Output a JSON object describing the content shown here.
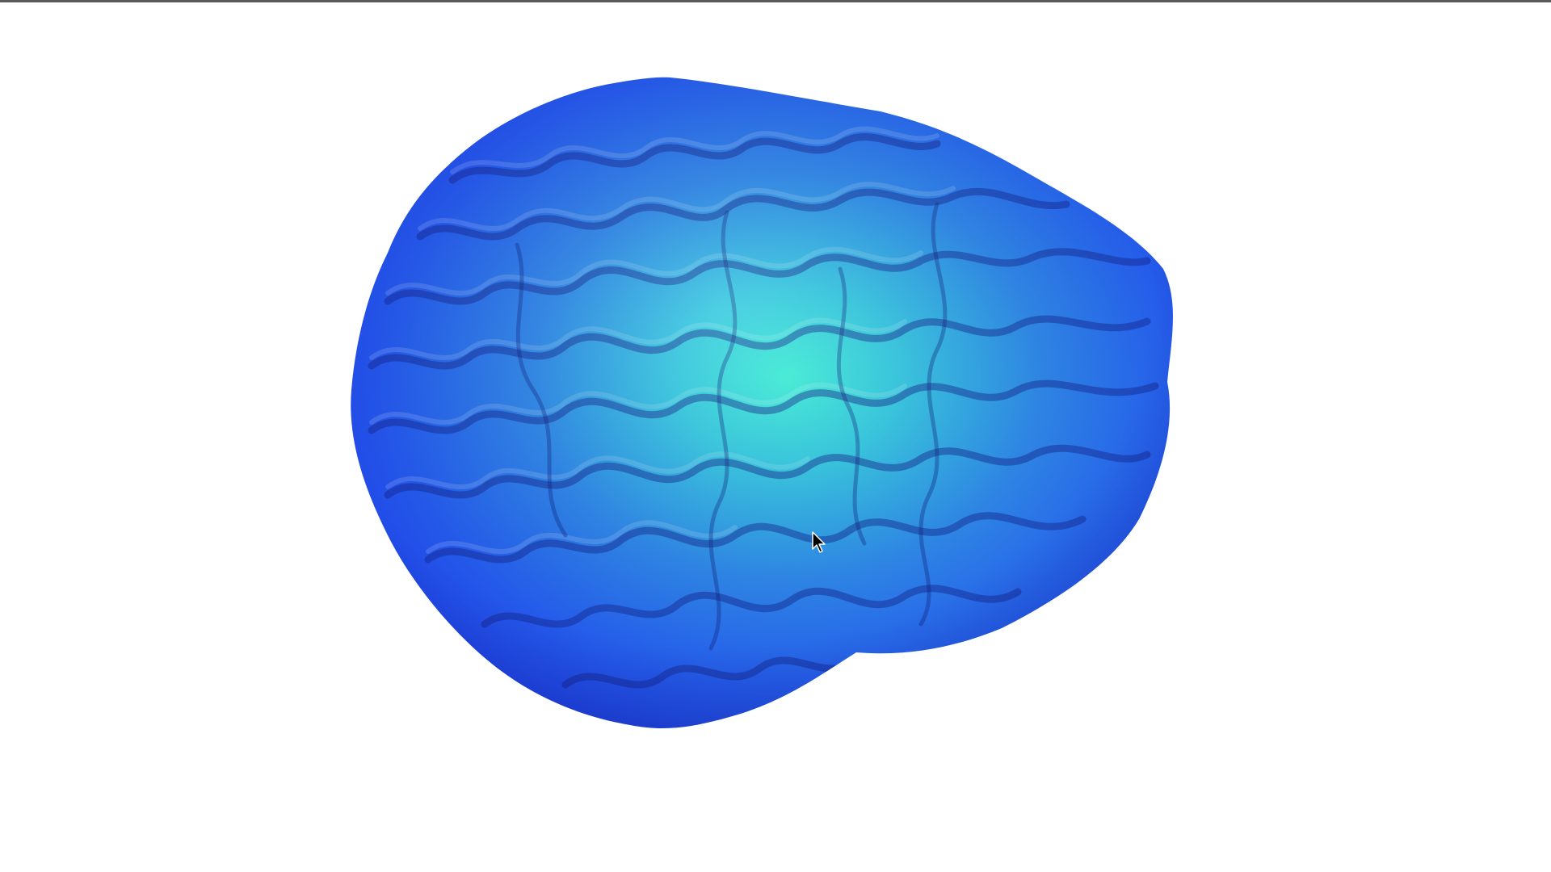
{
  "window": {
    "top_border_color": "#5a5a5a",
    "background_color": "#ffffff"
  },
  "viewport": {
    "object": "brain-surface-mesh",
    "colormap": {
      "low_color": "#1f3fe8",
      "mid_color": "#2f7fe6",
      "high_color": "#3ff0d8"
    }
  },
  "cursor": {
    "icon": "arrow-cursor-icon"
  }
}
